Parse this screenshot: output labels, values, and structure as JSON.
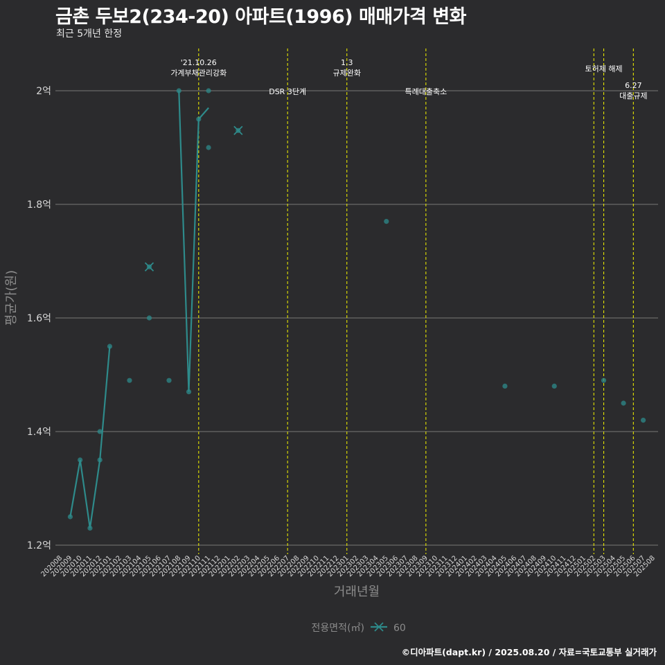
{
  "header": {
    "title": "금촌 두보2(234-20) 아파트(1996) 매매가격 변화",
    "subtitle": "최근 5개년 한정"
  },
  "footer": {
    "credit": "©디아파트(dapt.kr) / 2025.08.20 / 자료=국토교통부 실거래가"
  },
  "colors": {
    "background": "#2b2b2d",
    "grid": "#6a6a6a",
    "series": "#2e8b8b",
    "event_line": "#e6e600",
    "axis_text": "#d9d9d9",
    "axis_title": "#8c8c8c"
  },
  "chart_data": {
    "type": "line",
    "title": "금촌 두보2(234-20) 아파트(1996) 매매가격 변화",
    "subtitle": "최근 5개년 한정",
    "xlabel": "거래년월",
    "ylabel": "평균가(원)",
    "ylim": [
      1.2,
      2.08
    ],
    "yticks": [
      {
        "value": 1.2,
        "label": "1.2억"
      },
      {
        "value": 1.4,
        "label": "1.4억"
      },
      {
        "value": 1.6,
        "label": "1.6억"
      },
      {
        "value": 1.8,
        "label": "1.8억"
      },
      {
        "value": 2.0,
        "label": "2억"
      }
    ],
    "grid": true,
    "legend": {
      "position": "bottom",
      "title": "전용면적(㎡)",
      "entries": [
        "60"
      ]
    },
    "categories": [
      "202008",
      "202009",
      "202010",
      "202011",
      "202012",
      "202101",
      "202102",
      "202103",
      "202104",
      "202105",
      "202106",
      "202107",
      "202108",
      "202109",
      "202110",
      "202111",
      "202112",
      "202201",
      "202202",
      "202203",
      "202204",
      "202205",
      "202206",
      "202207",
      "202208",
      "202209",
      "202210",
      "202211",
      "202212",
      "202301",
      "202302",
      "202303",
      "202304",
      "202305",
      "202306",
      "202307",
      "202308",
      "202309",
      "202310",
      "202311",
      "202312",
      "202401",
      "202402",
      "202403",
      "202404",
      "202405",
      "202406",
      "202407",
      "202408",
      "202409",
      "202410",
      "202411",
      "202412",
      "202501",
      "202502",
      "202503",
      "202504",
      "202505",
      "202506",
      "202507",
      "202508"
    ],
    "series": [
      {
        "name": "60",
        "line_segments": [
          [
            [
              "202009",
              1.25
            ],
            [
              "202010",
              1.35
            ],
            [
              "202011",
              1.23
            ],
            [
              "202012",
              1.35
            ],
            [
              "202101",
              1.55
            ]
          ],
          [
            [
              "202108",
              2.0
            ],
            [
              "202109",
              1.47
            ],
            [
              "202110",
              1.95
            ],
            [
              "202111",
              1.97
            ]
          ]
        ],
        "points": [
          [
            "202009",
            1.25
          ],
          [
            "202010",
            1.35
          ],
          [
            "202011",
            1.23
          ],
          [
            "202012",
            1.35
          ],
          [
            "202012",
            1.4
          ],
          [
            "202101",
            1.55
          ],
          [
            "202103",
            1.49
          ],
          [
            "202105",
            1.6
          ],
          [
            "202107",
            1.49
          ],
          [
            "202108",
            2.0
          ],
          [
            "202109",
            1.47
          ],
          [
            "202110",
            1.95
          ],
          [
            "202111",
            2.0
          ],
          [
            "202111",
            1.9
          ],
          [
            "202305",
            1.77
          ],
          [
            "202405",
            1.48
          ],
          [
            "202410",
            1.48
          ],
          [
            "202503",
            1.49
          ],
          [
            "202505",
            1.45
          ],
          [
            "202507",
            1.42
          ]
        ],
        "cross_markers": [
          [
            "202105",
            1.69
          ],
          [
            "202202",
            1.93
          ]
        ]
      }
    ],
    "events": [
      {
        "x": "202110",
        "label": "'21.10.26\n가계부채관리강화",
        "row": "top"
      },
      {
        "x": "202207",
        "label": "DSR 3단계",
        "row": "low"
      },
      {
        "x": "202301",
        "label": "1.3\n규제완화",
        "row": "top"
      },
      {
        "x": "202309",
        "label": "특례대출축소",
        "row": "low"
      },
      {
        "x": "202502",
        "label": "",
        "row": "none"
      },
      {
        "x": "202503",
        "label": "토허제 해제",
        "row": "mid"
      },
      {
        "x": "202506",
        "label": "6.27\n대출규제",
        "row": "low2"
      }
    ]
  }
}
